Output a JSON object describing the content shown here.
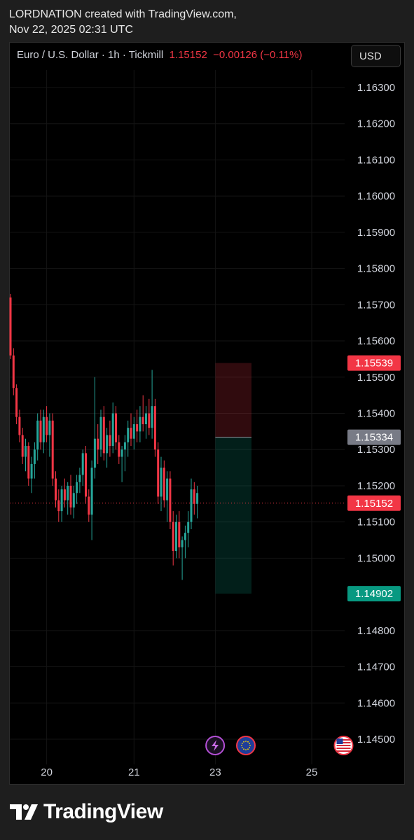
{
  "header": {
    "line1": "LORDNATION created with TradingView.com,",
    "line2": "Nov 22, 2025 02:31 UTC"
  },
  "legend": {
    "symbol": "Euro / U.S. Dollar · 1h · Tickmill",
    "price": "1.15152",
    "change": "−0.00126 (−0.11%)"
  },
  "currency_button": "USD",
  "colors": {
    "up": "#26a69a",
    "down": "#f23645",
    "background": "#000000"
  },
  "chart_data": {
    "type": "candlestick",
    "symbol": "EURUSD",
    "timeframe": "1h",
    "ylim": [
      1.1445,
      1.1635
    ],
    "y_ticks": [
      "1.16300",
      "1.16200",
      "1.16100",
      "1.16000",
      "1.15900",
      "1.15800",
      "1.15700",
      "1.15600",
      "1.15500",
      "1.15400",
      "1.15300",
      "1.15200",
      "1.15100",
      "1.15000",
      "1.14800",
      "1.14700",
      "1.14600",
      "1.14500"
    ],
    "x_ticks": [
      {
        "label": "20",
        "index": 12
      },
      {
        "label": "21",
        "index": 41
      },
      {
        "label": "23",
        "index": 68
      },
      {
        "label": "25",
        "index": 100
      }
    ],
    "price_tags": [
      {
        "label": "1.15539",
        "value": 1.15539,
        "role": "stop-loss",
        "color": "#f23645"
      },
      {
        "label": "1.15334",
        "value": 1.15334,
        "role": "entry",
        "color": "#787b86"
      },
      {
        "label": "1.15152",
        "value": 1.15152,
        "role": "last-price",
        "color": "#f23645"
      },
      {
        "label": "1.14902",
        "value": 1.14902,
        "role": "take-profit",
        "color": "#089981"
      }
    ],
    "short_position": {
      "entry": 1.15334,
      "stop": 1.15539,
      "target": 1.14902,
      "start_index": 68,
      "end_index": 80
    },
    "events": [
      {
        "icon": "lightning-icon",
        "index": 67
      },
      {
        "icon": "eu-flag-icon",
        "index": 80
      },
      {
        "icon": "us-flag-icon",
        "index": 115
      }
    ],
    "candles": [
      [
        1.1572,
        1.1573,
        1.1555,
        1.1556
      ],
      [
        1.1556,
        1.1558,
        1.1545,
        1.1547
      ],
      [
        1.1547,
        1.1548,
        1.1537,
        1.1539
      ],
      [
        1.1539,
        1.1541,
        1.1532,
        1.1534
      ],
      [
        1.1534,
        1.1536,
        1.1526,
        1.1528
      ],
      [
        1.1528,
        1.1533,
        1.1524,
        1.1531
      ],
      [
        1.1531,
        1.1532,
        1.152,
        1.1522
      ],
      [
        1.1522,
        1.1528,
        1.1518,
        1.1526
      ],
      [
        1.1526,
        1.1532,
        1.1522,
        1.153
      ],
      [
        1.153,
        1.154,
        1.1527,
        1.1538
      ],
      [
        1.1538,
        1.1541,
        1.153,
        1.1532
      ],
      [
        1.1532,
        1.1541,
        1.1529,
        1.1539
      ],
      [
        1.1539,
        1.1542,
        1.1532,
        1.1534
      ],
      [
        1.1534,
        1.154,
        1.1528,
        1.1538
      ],
      [
        1.1538,
        1.154,
        1.152,
        1.1522
      ],
      [
        1.1522,
        1.1524,
        1.1514,
        1.1516
      ],
      [
        1.1516,
        1.1519,
        1.151,
        1.1513
      ],
      [
        1.1513,
        1.152,
        1.151,
        1.1519
      ],
      [
        1.1519,
        1.1522,
        1.1514,
        1.1516
      ],
      [
        1.1516,
        1.1521,
        1.1512,
        1.152
      ],
      [
        1.152,
        1.1523,
        1.1512,
        1.1514
      ],
      [
        1.1514,
        1.152,
        1.1511,
        1.1518
      ],
      [
        1.1518,
        1.1523,
        1.1515,
        1.1521
      ],
      [
        1.1521,
        1.1525,
        1.1518,
        1.1523
      ],
      [
        1.1523,
        1.153,
        1.152,
        1.1529
      ],
      [
        1.1529,
        1.1531,
        1.1515,
        1.1517
      ],
      [
        1.1517,
        1.1519,
        1.151,
        1.1512
      ],
      [
        1.1512,
        1.1527,
        1.1505,
        1.1525
      ],
      [
        1.1525,
        1.155,
        1.1522,
        1.1533
      ],
      [
        1.1533,
        1.1537,
        1.1526,
        1.153
      ],
      [
        1.153,
        1.1541,
        1.1528,
        1.1539
      ],
      [
        1.1539,
        1.1542,
        1.1527,
        1.1529
      ],
      [
        1.1529,
        1.1536,
        1.1525,
        1.1534
      ],
      [
        1.1534,
        1.1538,
        1.1528,
        1.1531
      ],
      [
        1.1531,
        1.1543,
        1.1529,
        1.154
      ],
      [
        1.154,
        1.1542,
        1.153,
        1.1532
      ],
      [
        1.1532,
        1.1534,
        1.1526,
        1.1528
      ],
      [
        1.1528,
        1.1531,
        1.1521,
        1.153
      ],
      [
        1.153,
        1.1534,
        1.1524,
        1.1532
      ],
      [
        1.1532,
        1.1538,
        1.1528,
        1.1536
      ],
      [
        1.1536,
        1.154,
        1.1531,
        1.1533
      ],
      [
        1.1533,
        1.1539,
        1.153,
        1.1537
      ],
      [
        1.1537,
        1.1541,
        1.1532,
        1.1535
      ],
      [
        1.1535,
        1.1542,
        1.1532,
        1.1539
      ],
      [
        1.1539,
        1.1545,
        1.1535,
        1.1537
      ],
      [
        1.1537,
        1.1542,
        1.1533,
        1.154
      ],
      [
        1.154,
        1.1544,
        1.1534,
        1.1536
      ],
      [
        1.1536,
        1.1552,
        1.1533,
        1.1542
      ],
      [
        1.1542,
        1.1544,
        1.1528,
        1.153
      ],
      [
        1.153,
        1.1532,
        1.1515,
        1.1517
      ],
      [
        1.1517,
        1.1528,
        1.1513,
        1.1525
      ],
      [
        1.1525,
        1.1527,
        1.1514,
        1.1516
      ],
      [
        1.1516,
        1.1524,
        1.151,
        1.1522
      ],
      [
        1.1522,
        1.1524,
        1.1508,
        1.151
      ],
      [
        1.151,
        1.1513,
        1.1498,
        1.1502
      ],
      [
        1.1502,
        1.1512,
        1.15,
        1.151
      ],
      [
        1.151,
        1.1513,
        1.15,
        1.1503
      ],
      [
        1.1503,
        1.1506,
        1.1494,
        1.1505
      ],
      [
        1.1505,
        1.1509,
        1.15,
        1.1507
      ],
      [
        1.1507,
        1.1513,
        1.1503,
        1.151
      ],
      [
        1.151,
        1.1522,
        1.1508,
        1.1519
      ],
      [
        1.1519,
        1.1521,
        1.1512,
        1.1515
      ],
      [
        1.1515,
        1.152,
        1.1511,
        1.1518
      ]
    ]
  }
}
